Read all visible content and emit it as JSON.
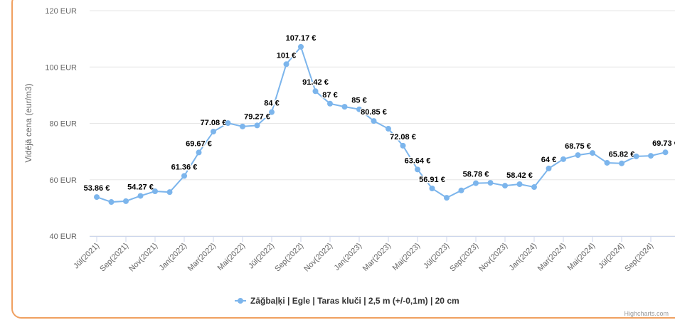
{
  "chart_data": {
    "type": "line",
    "y_label": "Vidējā cena (eur/m3)",
    "credits": "Highcharts.com",
    "categories": [
      "Jūl(2021)",
      null,
      "Sep(2021)",
      null,
      "Nov(2021)",
      null,
      "Jan(2022)",
      null,
      "Mar(2022)",
      null,
      "Mai(2022)",
      null,
      "Jūl(2022)",
      null,
      "Sep(2022)",
      null,
      "Nov(2022)",
      null,
      "Jan(2023)",
      null,
      "Mar(2023)",
      null,
      "Mai(2023)",
      null,
      "Jūl(2023)",
      null,
      "Sep(2023)",
      null,
      "Nov(2023)",
      null,
      "Jan(2024)",
      null,
      "Mar(2024)",
      null,
      "Mai(2024)",
      null,
      "Jūl(2024)",
      null,
      "Sep(2024)",
      null
    ],
    "series": [
      {
        "name": "Zāğbaļķi | Egle | Taras kluči | 2,5 m (+/-0,1m) | 20 cm",
        "color": "#7cb5ec",
        "values": [
          53.86,
          52.1,
          52.4,
          54.27,
          55.9,
          55.6,
          61.36,
          69.67,
          77.08,
          80.1,
          78.9,
          79.27,
          84,
          101,
          107.17,
          91.42,
          87,
          85.9,
          85,
          80.85,
          78.1,
          72.08,
          63.64,
          56.91,
          53.6,
          56.2,
          58.78,
          58.9,
          57.9,
          58.42,
          57.4,
          64,
          67.3,
          68.75,
          69.5,
          66,
          65.82,
          68.3,
          68.5,
          69.73
        ],
        "value_labels": [
          "53.86 €",
          null,
          null,
          "54.27 €",
          null,
          null,
          "61.36 €",
          "69.67 €",
          "77.08 €",
          null,
          null,
          "79.27 €",
          "84 €",
          "101 €",
          "107.17 €",
          "91.42 €",
          "87 €",
          null,
          "85 €",
          "80.85 €",
          null,
          "72.08 €",
          "63.64 €",
          "56.91 €",
          null,
          null,
          "58.78 €",
          null,
          null,
          "58.42 €",
          null,
          "64 €",
          null,
          "68.75 €",
          null,
          null,
          "65.82 €",
          null,
          null,
          "69.73 €"
        ]
      }
    ],
    "ylim": [
      40,
      120
    ],
    "yticks": [
      {
        "value": 40,
        "label": "40 EUR"
      },
      {
        "value": 60,
        "label": "60 EUR"
      },
      {
        "value": 80,
        "label": "80 EUR"
      },
      {
        "value": 100,
        "label": "100 EUR"
      },
      {
        "value": 120,
        "label": "120 EUR"
      }
    ],
    "grid": true
  }
}
